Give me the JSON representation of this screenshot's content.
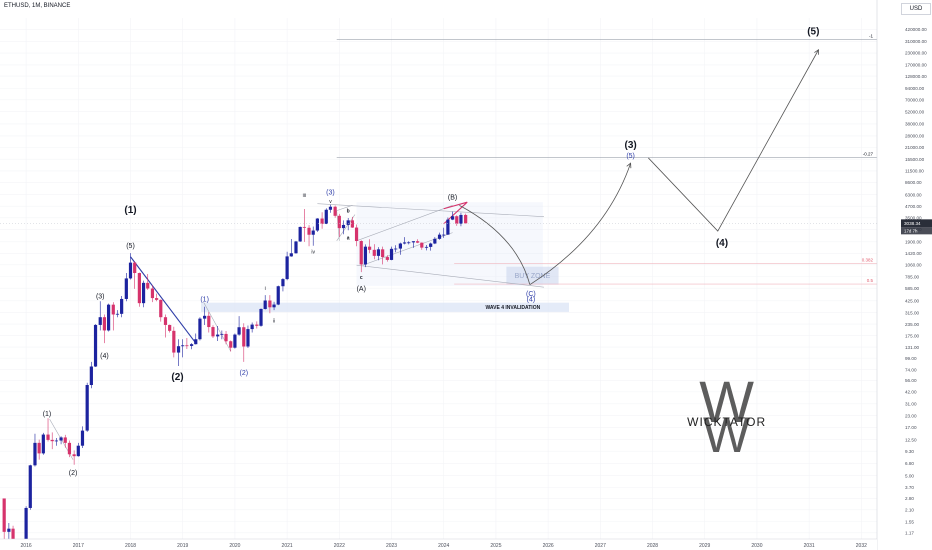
{
  "header": {
    "symbol": "ETHUSD, 1M, BINANCE",
    "currency": "USD"
  },
  "chart_data": {
    "type": "candlestick",
    "x_ticks": [
      "2016",
      "2017",
      "2018",
      "2019",
      "2020",
      "2021",
      "2022",
      "2023",
      "2024",
      "2025",
      "2026",
      "2027",
      "2028",
      "2029",
      "2030",
      "2031",
      "2032"
    ],
    "y_ticks": [
      "420000.00",
      "310000.00",
      "230000.00",
      "170000.00",
      "128000.00",
      "94000.00",
      "70000.00",
      "52000.00",
      "38000.00",
      "28000.00",
      "21000.00",
      "15500.00",
      "11500.00",
      "8600.00",
      "6300.00",
      "4700.00",
      "3500.00",
      "2600.00",
      "1900.00",
      "1420.00",
      "1060.00",
      "785.00",
      "585.00",
      "425.00",
      "315.00",
      "235.00",
      "175.00",
      "131.00",
      "99.00",
      "74.00",
      "56.00",
      "42.00",
      "31.00",
      "23.00",
      "17.00",
      "12.50",
      "9.30",
      "6.80",
      "5.00",
      "3.70",
      "2.80",
      "2.10",
      "1.55",
      "1.17"
    ],
    "y_scale": "log",
    "ylim": [
      1.0,
      560000
    ],
    "xlim": [
      2015.5,
      2032.3
    ],
    "current_price": {
      "price_label": "3038.34",
      "countdown_label": "17d 7h"
    },
    "colors": {
      "up": "#1c239f",
      "down": "#d6336c",
      "wave_blue": "#2f3ea8",
      "fib_red": "#e05d6f",
      "path": "#555555"
    },
    "candles": [
      [
        2015.58,
        2.8,
        1.2,
        2.8,
        0.6
      ],
      [
        2015.67,
        1.2,
        1.3,
        1.5,
        0.9
      ],
      [
        2015.75,
        1.3,
        0.9,
        1.4,
        0.8
      ],
      [
        2015.83,
        0.9,
        0.9,
        1.0,
        0.85
      ],
      [
        2015.92,
        0.9,
        0.95,
        1.0,
        0.85
      ],
      [
        2016.0,
        0.95,
        2.2,
        2.3,
        0.9
      ],
      [
        2016.08,
        2.2,
        6.5,
        6.6,
        2.1
      ],
      [
        2016.17,
        6.5,
        11.5,
        14.5,
        6.3
      ],
      [
        2016.25,
        11.5,
        8.8,
        12.5,
        7.5
      ],
      [
        2016.33,
        8.8,
        14.2,
        14.8,
        8.5
      ],
      [
        2016.42,
        14.2,
        12.4,
        21.5,
        11.9
      ],
      [
        2016.5,
        12.4,
        12.0,
        15.0,
        9.8
      ],
      [
        2016.58,
        12.0,
        12.2,
        13.0,
        10.7
      ],
      [
        2016.67,
        12.2,
        13.2,
        13.6,
        11.1
      ],
      [
        2016.75,
        13.2,
        11.5,
        14.1,
        10.2
      ],
      [
        2016.83,
        11.5,
        8.6,
        12.2,
        8.0
      ],
      [
        2016.92,
        8.6,
        8.2,
        9.5,
        6.6
      ],
      [
        2017.0,
        8.2,
        10.7,
        11.5,
        8.1
      ],
      [
        2017.08,
        10.7,
        15.7,
        17.5,
        10.1
      ],
      [
        2017.17,
        15.7,
        50,
        53,
        15.2
      ],
      [
        2017.25,
        50,
        80,
        90,
        46
      ],
      [
        2017.33,
        80,
        230,
        235,
        79
      ],
      [
        2017.42,
        230,
        280,
        420,
        200
      ],
      [
        2017.5,
        280,
        200,
        300,
        145
      ],
      [
        2017.58,
        200,
        385,
        395,
        195
      ],
      [
        2017.67,
        385,
        300,
        410,
        200
      ],
      [
        2017.75,
        300,
        305,
        335,
        280
      ],
      [
        2017.83,
        305,
        445,
        480,
        280
      ],
      [
        2017.92,
        445,
        750,
        860,
        420
      ],
      [
        2018.0,
        750,
        1120,
        1425,
        730
      ],
      [
        2018.08,
        1120,
        860,
        1160,
        575
      ],
      [
        2018.17,
        860,
        400,
        870,
        365
      ],
      [
        2018.25,
        400,
        670,
        710,
        360
      ],
      [
        2018.33,
        670,
        580,
        840,
        560
      ],
      [
        2018.42,
        580,
        455,
        630,
        410
      ],
      [
        2018.5,
        455,
        435,
        510,
        420
      ],
      [
        2018.58,
        435,
        280,
        440,
        250
      ],
      [
        2018.67,
        280,
        230,
        300,
        167
      ],
      [
        2018.75,
        230,
        198,
        232,
        190
      ],
      [
        2018.83,
        198,
        114,
        220,
        101
      ],
      [
        2018.92,
        114,
        134,
        160,
        81
      ],
      [
        2019.0,
        134,
        137,
        160,
        101
      ],
      [
        2019.08,
        137,
        135,
        165,
        125
      ],
      [
        2019.17,
        135,
        141,
        145,
        124
      ],
      [
        2019.25,
        141,
        160,
        185,
        140
      ],
      [
        2019.33,
        160,
        270,
        280,
        155
      ],
      [
        2019.42,
        270,
        290,
        365,
        230
      ],
      [
        2019.5,
        290,
        218,
        320,
        190
      ],
      [
        2019.58,
        218,
        172,
        228,
        165
      ],
      [
        2019.67,
        172,
        180,
        224,
        153
      ],
      [
        2019.75,
        180,
        183,
        200,
        160
      ],
      [
        2019.83,
        183,
        152,
        197,
        141
      ],
      [
        2019.92,
        152,
        129,
        155,
        117
      ],
      [
        2020.0,
        129,
        180,
        185,
        126
      ],
      [
        2020.08,
        180,
        217,
        288,
        175
      ],
      [
        2020.17,
        217,
        133,
        240,
        90
      ],
      [
        2020.25,
        133,
        207,
        227,
        128
      ],
      [
        2020.33,
        207,
        232,
        245,
        190
      ],
      [
        2020.42,
        232,
        225,
        252,
        210
      ],
      [
        2020.5,
        225,
        345,
        350,
        220
      ],
      [
        2020.58,
        345,
        428,
        490,
        340
      ],
      [
        2020.67,
        428,
        360,
        490,
        310
      ],
      [
        2020.75,
        360,
        386,
        415,
        335
      ],
      [
        2020.83,
        386,
        615,
        625,
        380
      ],
      [
        2020.92,
        615,
        737,
        755,
        540
      ],
      [
        2021.0,
        737,
        1312,
        1475,
        715
      ],
      [
        2021.08,
        1312,
        1420,
        2040,
        1300
      ],
      [
        2021.17,
        1420,
        1918,
        1945,
        1410
      ],
      [
        2021.25,
        1918,
        2773,
        2800,
        1900
      ],
      [
        2021.33,
        2773,
        2715,
        4380,
        1900
      ],
      [
        2021.42,
        2715,
        2275,
        2900,
        1700
      ],
      [
        2021.5,
        2275,
        2532,
        2800,
        1720
      ],
      [
        2021.58,
        2532,
        3433,
        3470,
        2450
      ],
      [
        2021.67,
        3433,
        3000,
        4030,
        2650
      ],
      [
        2021.75,
        3000,
        4290,
        4450,
        2980
      ],
      [
        2021.83,
        4290,
        4630,
        4870,
        3980
      ],
      [
        2021.92,
        4630,
        3680,
        4780,
        3500
      ],
      [
        2022.0,
        3680,
        2690,
        3860,
        2160
      ],
      [
        2022.08,
        2690,
        2920,
        3280,
        2300
      ],
      [
        2022.17,
        2920,
        3280,
        3480,
        2550
      ],
      [
        2022.25,
        3280,
        2730,
        3580,
        2710
      ],
      [
        2022.33,
        2730,
        1940,
        2950,
        1700
      ],
      [
        2022.42,
        1940,
        1070,
        1975,
        880
      ],
      [
        2022.5,
        1070,
        1680,
        1780,
        1000
      ],
      [
        2022.58,
        1680,
        1550,
        2030,
        1420
      ],
      [
        2022.67,
        1550,
        1330,
        1790,
        1220
      ],
      [
        2022.75,
        1330,
        1570,
        1660,
        1190
      ],
      [
        2022.83,
        1570,
        1290,
        1680,
        1070
      ],
      [
        2022.92,
        1290,
        1200,
        1350,
        1150
      ],
      [
        2023.0,
        1200,
        1590,
        1680,
        1190
      ],
      [
        2023.08,
        1590,
        1600,
        1740,
        1460
      ],
      [
        2023.17,
        1600,
        1820,
        1860,
        1370
      ],
      [
        2023.25,
        1820,
        1870,
        2140,
        1780
      ],
      [
        2023.33,
        1870,
        1874,
        1930,
        1780
      ],
      [
        2023.42,
        1874,
        1930,
        1930,
        1630
      ],
      [
        2023.5,
        1930,
        1860,
        2030,
        1840
      ],
      [
        2023.58,
        1860,
        1640,
        1870,
        1550
      ],
      [
        2023.67,
        1640,
        1670,
        1750,
        1530
      ],
      [
        2023.75,
        1670,
        1820,
        1860,
        1520
      ],
      [
        2023.83,
        1820,
        2050,
        2140,
        1790
      ],
      [
        2023.92,
        2050,
        2280,
        2400,
        2000
      ],
      [
        2024.0,
        2280,
        2280,
        2720,
        2100
      ],
      [
        2024.08,
        2280,
        3340,
        3520,
        2270
      ],
      [
        2024.17,
        3340,
        3640,
        4090,
        3300
      ],
      [
        2024.25,
        3640,
        3010,
        3730,
        2850
      ],
      [
        2024.33,
        3010,
        3760,
        3980,
        2820
      ],
      [
        2024.42,
        3760,
        3038,
        3890,
        3000
      ]
    ],
    "wave_labels": [
      {
        "t": "(1)",
        "x": 2016.4,
        "p": 24,
        "c": "#131722",
        "s": 7
      },
      {
        "t": "(2)",
        "x": 2016.9,
        "p": 5.4,
        "c": "#131722",
        "s": 7
      },
      {
        "t": "(3)",
        "x": 2017.42,
        "p": 480,
        "c": "#131722",
        "s": 7
      },
      {
        "t": "(4)",
        "x": 2017.5,
        "p": 105,
        "c": "#131722",
        "s": 7
      },
      {
        "t": "(5)",
        "x": 2018.0,
        "p": 1720,
        "c": "#131722",
        "s": 7
      },
      {
        "t": "(1)",
        "x": 2018.0,
        "p": 4300,
        "c": "#131722",
        "s": 10,
        "b": true
      },
      {
        "t": "(2)",
        "x": 2018.9,
        "p": 62,
        "c": "#131722",
        "s": 10,
        "b": true
      },
      {
        "t": "(1)",
        "x": 2019.42,
        "p": 440,
        "c": "#2f3ea8",
        "s": 7
      },
      {
        "t": "(2)",
        "x": 2020.17,
        "p": 68,
        "c": "#2f3ea8",
        "s": 7
      },
      {
        "t": "i",
        "x": 2020.58,
        "p": 580,
        "c": "#131722",
        "s": 5
      },
      {
        "t": "ii",
        "x": 2020.75,
        "p": 255,
        "c": "#131722",
        "s": 5
      },
      {
        "t": "iii",
        "x": 2021.33,
        "p": 6200,
        "c": "#131722",
        "s": 5
      },
      {
        "t": "iv",
        "x": 2021.5,
        "p": 1480,
        "c": "#131722",
        "s": 5
      },
      {
        "t": "v",
        "x": 2021.83,
        "p": 5300,
        "c": "#131722",
        "s": 5
      },
      {
        "t": "(3)",
        "x": 2021.83,
        "p": 6700,
        "c": "#2f3ea8",
        "s": 7
      },
      {
        "t": "a",
        "x": 2022.17,
        "p": 2100,
        "c": "#131722",
        "s": 5,
        "b": true
      },
      {
        "t": "b",
        "x": 2022.17,
        "p": 4150,
        "c": "#131722",
        "s": 5,
        "b": true
      },
      {
        "t": "c",
        "x": 2022.42,
        "p": 770,
        "c": "#131722",
        "s": 5,
        "b": true
      },
      {
        "t": "(A)",
        "x": 2022.42,
        "p": 580,
        "c": "#131722",
        "s": 7
      },
      {
        "t": "(B)",
        "x": 2024.17,
        "p": 5900,
        "c": "#131722",
        "s": 7
      },
      {
        "t": "(C)",
        "x": 2025.67,
        "p": 510,
        "c": "#2f3ea8",
        "s": 7
      },
      {
        "t": "(4)",
        "x": 2025.67,
        "p": 445,
        "c": "#2f3ea8",
        "s": 7
      },
      {
        "t": "(3)",
        "x": 2027.58,
        "p": 22500,
        "c": "#131722",
        "s": 10,
        "b": true
      },
      {
        "t": "(5)",
        "x": 2027.58,
        "p": 17000,
        "c": "#2f3ea8",
        "s": 7
      },
      {
        "t": "(4)",
        "x": 2029.33,
        "p": 1850,
        "c": "#131722",
        "s": 10,
        "b": true
      },
      {
        "t": "(5)",
        "x": 2031.08,
        "p": 400000,
        "c": "#131722",
        "s": 10,
        "b": true
      }
    ],
    "annotations": {
      "buy_zone": "BUY ZONE",
      "invalidation": "WAVE 4 INVALIDATION",
      "fib_levels": [
        {
          "label": "-1",
          "p": 325000,
          "c": "#131722"
        },
        {
          "label": "-0.27",
          "p": 16200,
          "c": "#131722"
        },
        {
          "label": "0.382",
          "p": 1100,
          "c": "#e05d6f"
        },
        {
          "label": "0.5",
          "p": 650,
          "c": "#e05d6f"
        }
      ],
      "invalidation_level": 362,
      "watermark_letters": "W",
      "watermark_text": "WICKTATOR"
    }
  }
}
